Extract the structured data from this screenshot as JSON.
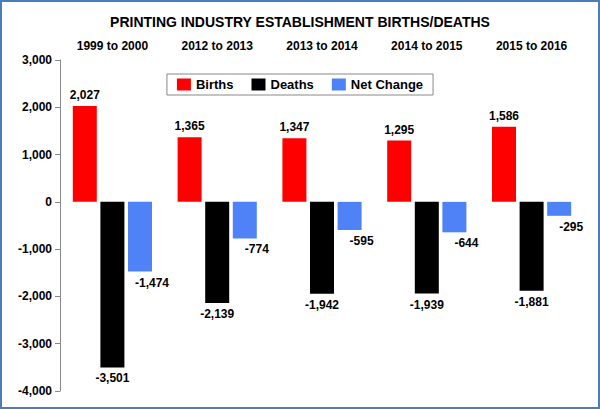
{
  "chart_data": {
    "type": "bar",
    "title": "PRINTING INDUSTRY ESTABLISHMENT BIRTHS/DEATHS",
    "categories": [
      "1999 to 2000",
      "2012 to 2013",
      "2013 to 2014",
      "2014 to 2015",
      "2015 to 2016"
    ],
    "series": [
      {
        "name": "Births",
        "color": "#ff0000",
        "values": [
          2027,
          1365,
          1347,
          1295,
          1586
        ],
        "value_labels": [
          "2,027",
          "1,365",
          "1,347",
          "1,295",
          "1,586"
        ]
      },
      {
        "name": "Deaths",
        "color": "#000000",
        "values": [
          -3501,
          -2139,
          -1942,
          -1939,
          -1881
        ],
        "value_labels": [
          "-3,501",
          "-2,139",
          "-1,942",
          "-1,939",
          "-1,881"
        ]
      },
      {
        "name": "Net Change",
        "color": "#4f81f7",
        "values": [
          -1474,
          -774,
          -595,
          -644,
          -295
        ],
        "value_labels": [
          "-1,474",
          "-774",
          "-595",
          "-644",
          "-295"
        ]
      }
    ],
    "ylim": [
      -4000,
      3000
    ],
    "yticks": [
      {
        "value": -4000,
        "label": "-4,000"
      },
      {
        "value": -3000,
        "label": "-3,000"
      },
      {
        "value": -2000,
        "label": "-2,000"
      },
      {
        "value": -1000,
        "label": "-1,000"
      },
      0,
      {
        "value": 1000,
        "label": "1,000"
      },
      {
        "value": 2000,
        "label": "2,000"
      },
      {
        "value": 3000,
        "label": "3,000"
      }
    ],
    "grid": false,
    "legend": "top",
    "data_labels": true
  }
}
